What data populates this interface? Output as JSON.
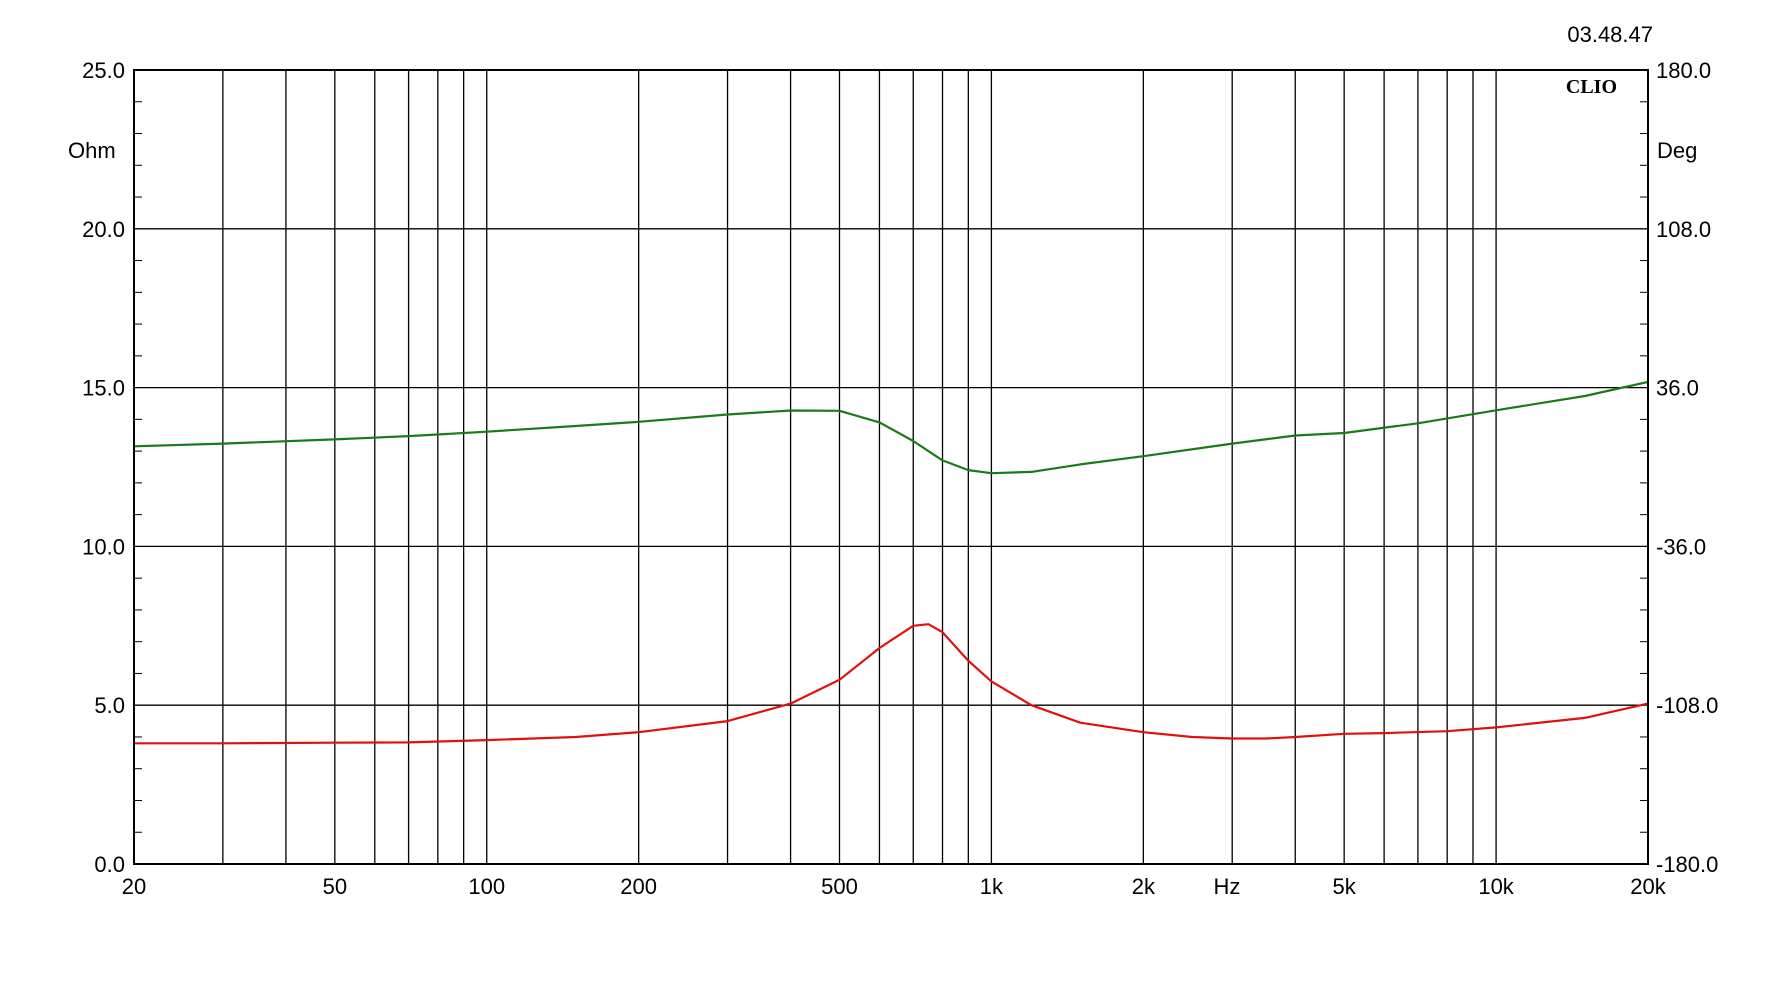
{
  "timestamp": "03.48.47",
  "logo": "CLIO",
  "chart_data": {
    "type": "line",
    "title": "",
    "grid": true,
    "x_scale": "log",
    "xlim": [
      20,
      20000
    ],
    "xlabel": "Hz",
    "x_ticks": [
      {
        "value": 20,
        "label": "20"
      },
      {
        "value": 50,
        "label": "50"
      },
      {
        "value": 100,
        "label": "100"
      },
      {
        "value": 200,
        "label": "200"
      },
      {
        "value": 500,
        "label": "500"
      },
      {
        "value": 1000,
        "label": "1k"
      },
      {
        "value": 2000,
        "label": "2k"
      },
      {
        "value": 5000,
        "label": "5k"
      },
      {
        "value": 10000,
        "label": "10k"
      },
      {
        "value": 20000,
        "label": "20k"
      }
    ],
    "x_gridlines": [
      20,
      30,
      40,
      50,
      60,
      70,
      80,
      90,
      100,
      200,
      300,
      400,
      500,
      600,
      700,
      800,
      900,
      1000,
      2000,
      3000,
      4000,
      5000,
      6000,
      7000,
      8000,
      9000,
      10000,
      20000
    ],
    "y_left": {
      "label": "Ohm",
      "ylim": [
        0,
        25
      ],
      "ticks": [
        {
          "value": 0,
          "label": "0.0"
        },
        {
          "value": 5,
          "label": "5.0"
        },
        {
          "value": 10,
          "label": "10.0"
        },
        {
          "value": 15,
          "label": "15.0"
        },
        {
          "value": 20,
          "label": "20.0"
        },
        {
          "value": 25,
          "label": "25.0"
        }
      ]
    },
    "y_right": {
      "label": "Deg",
      "ylim": [
        -180,
        180
      ],
      "ticks": [
        {
          "value": -180,
          "label": "-180.0"
        },
        {
          "value": -108,
          "label": "-108.0"
        },
        {
          "value": -36,
          "label": "-36.0"
        },
        {
          "value": 36,
          "label": "36.0"
        },
        {
          "value": 108,
          "label": "108.0"
        },
        {
          "value": 180,
          "label": "180.0"
        }
      ]
    },
    "series": [
      {
        "axis": "left",
        "color": "#e01010",
        "points": [
          [
            20,
            3.8
          ],
          [
            30,
            3.8
          ],
          [
            50,
            3.82
          ],
          [
            70,
            3.83
          ],
          [
            100,
            3.9
          ],
          [
            150,
            4.0
          ],
          [
            200,
            4.15
          ],
          [
            300,
            4.5
          ],
          [
            400,
            5.05
          ],
          [
            500,
            5.8
          ],
          [
            600,
            6.8
          ],
          [
            700,
            7.5
          ],
          [
            750,
            7.55
          ],
          [
            800,
            7.3
          ],
          [
            900,
            6.4
          ],
          [
            1000,
            5.75
          ],
          [
            1200,
            5.0
          ],
          [
            1500,
            4.45
          ],
          [
            2000,
            4.15
          ],
          [
            2500,
            4.0
          ],
          [
            3000,
            3.95
          ],
          [
            3500,
            3.95
          ],
          [
            4000,
            4.0
          ],
          [
            5000,
            4.1
          ],
          [
            6000,
            4.12
          ],
          [
            8000,
            4.18
          ],
          [
            10000,
            4.3
          ],
          [
            15000,
            4.6
          ],
          [
            20000,
            5.05
          ]
        ]
      },
      {
        "axis": "right",
        "color": "#1a7a1a",
        "points": [
          [
            20,
            9.4
          ],
          [
            30,
            10.6
          ],
          [
            50,
            12.5
          ],
          [
            70,
            14.0
          ],
          [
            100,
            16.0
          ],
          [
            150,
            18.6
          ],
          [
            200,
            20.5
          ],
          [
            300,
            23.8
          ],
          [
            400,
            25.6
          ],
          [
            500,
            25.5
          ],
          [
            600,
            20.2
          ],
          [
            700,
            11.8
          ],
          [
            800,
            3.0
          ],
          [
            900,
            -1.4
          ],
          [
            1000,
            -2.8
          ],
          [
            1200,
            -2.2
          ],
          [
            1500,
            1.2
          ],
          [
            2000,
            4.9
          ],
          [
            3000,
            10.6
          ],
          [
            4000,
            14.3
          ],
          [
            5000,
            15.4
          ],
          [
            7000,
            19.8
          ],
          [
            10000,
            25.7
          ],
          [
            15000,
            32.2
          ],
          [
            20000,
            38.6
          ]
        ]
      }
    ]
  }
}
